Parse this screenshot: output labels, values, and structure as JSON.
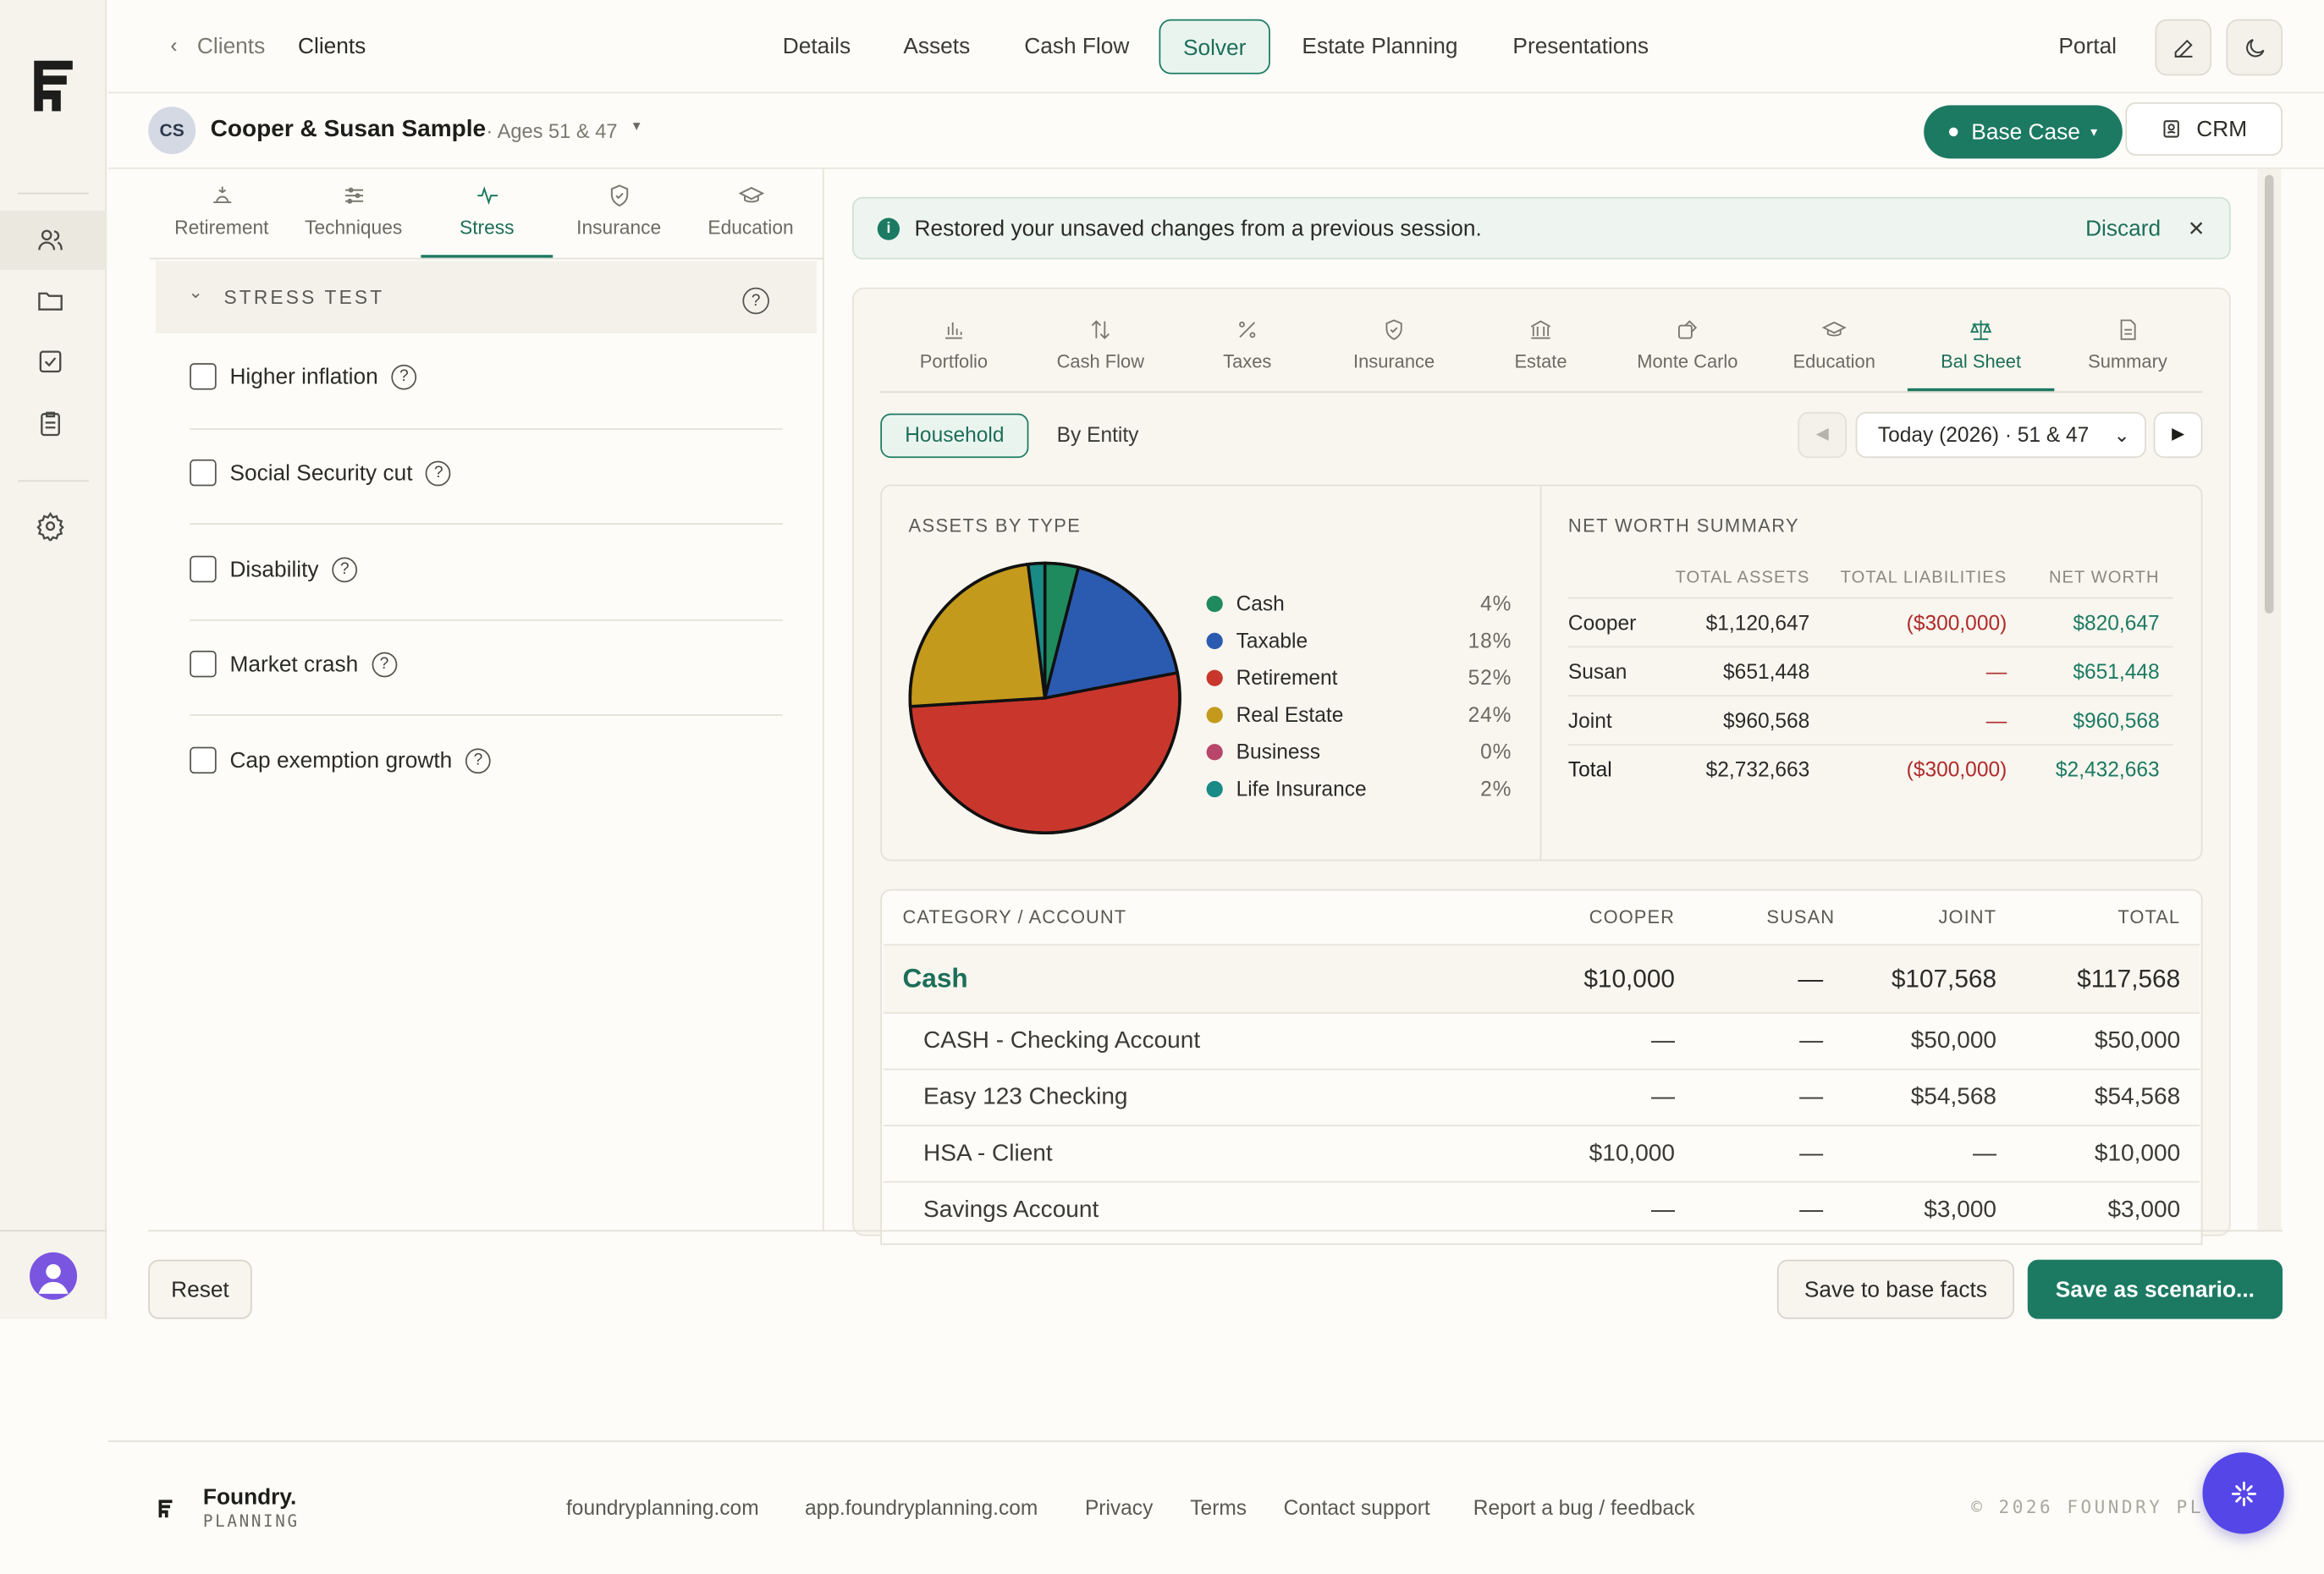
{
  "breadcrumb": {
    "back": "Clients",
    "current": "Clients"
  },
  "nav": {
    "tabs": [
      "Details",
      "Assets",
      "Cash Flow",
      "Solver",
      "Estate Planning",
      "Presentations"
    ],
    "active": "Solver",
    "portal": "Portal"
  },
  "client": {
    "initials": "CS",
    "name": "Cooper & Susan Sample",
    "ages": "· Ages 51 & 47",
    "scenario": "Base Case",
    "crm": "CRM"
  },
  "left_tabs": [
    "Retirement",
    "Techniques",
    "Stress",
    "Insurance",
    "Education"
  ],
  "stress": {
    "header": "STRESS TEST",
    "items": [
      "Higher inflation",
      "Social Security cut",
      "Disability",
      "Market crash",
      "Cap exemption growth"
    ],
    "help": "?"
  },
  "banner": {
    "message": "Restored your unsaved changes from a previous session.",
    "discard": "Discard",
    "close": "✕"
  },
  "right_tabs": [
    "Portfolio",
    "Cash Flow",
    "Taxes",
    "Insurance",
    "Estate",
    "Monte Carlo",
    "Education",
    "Bal Sheet",
    "Summary"
  ],
  "view": {
    "household": "Household",
    "by_entity": "By Entity",
    "date_select": "Today (2026) · 51 & 47"
  },
  "assets_by_type": {
    "title": "ASSETS BY TYPE",
    "chart_data": {
      "type": "pie",
      "categories": [
        "Cash",
        "Taxable",
        "Retirement",
        "Real Estate",
        "Business",
        "Life Insurance"
      ],
      "values": [
        4,
        18,
        52,
        24,
        0,
        2
      ],
      "labels": [
        "4%",
        "18%",
        "52%",
        "24%",
        "0%",
        "2%"
      ],
      "colors": [
        "#1f8a5e",
        "#2b5bb0",
        "#c9372c",
        "#c49a1c",
        "#b8456b",
        "#1a8a86"
      ]
    }
  },
  "net_worth": {
    "title": "NET WORTH SUMMARY",
    "headers": [
      "TOTAL ASSETS",
      "TOTAL LIABILITIES",
      "NET WORTH"
    ],
    "rows": [
      {
        "name": "Cooper",
        "assets": "$1,120,647",
        "liabilities": "($300,000)",
        "net": "$820,647"
      },
      {
        "name": "Susan",
        "assets": "$651,448",
        "liabilities": "—",
        "net": "$651,448"
      },
      {
        "name": "Joint",
        "assets": "$960,568",
        "liabilities": "—",
        "net": "$960,568"
      },
      {
        "name": "Total",
        "assets": "$2,732,663",
        "liabilities": "($300,000)",
        "net": "$2,432,663"
      }
    ]
  },
  "balance_table": {
    "headers": [
      "CATEGORY / ACCOUNT",
      "COOPER",
      "SUSAN",
      "JOINT",
      "TOTAL"
    ],
    "category": {
      "name": "Cash",
      "cooper": "$10,000",
      "susan": "—",
      "joint": "$107,568",
      "total": "$117,568"
    },
    "rows": [
      {
        "name": "CASH - Checking Account",
        "cooper": "—",
        "susan": "—",
        "joint": "$50,000",
        "total": "$50,000"
      },
      {
        "name": "Easy 123 Checking",
        "cooper": "—",
        "susan": "—",
        "joint": "$54,568",
        "total": "$54,568"
      },
      {
        "name": "HSA - Client",
        "cooper": "$10,000",
        "susan": "—",
        "joint": "—",
        "total": "$10,000"
      },
      {
        "name": "Savings Account",
        "cooper": "—",
        "susan": "—",
        "joint": "$3,000",
        "total": "$3,000"
      }
    ]
  },
  "actions": {
    "reset": "Reset",
    "save_base": "Save to base facts",
    "save_scenario": "Save as scenario..."
  },
  "footer": {
    "brand": "Foundry.",
    "brand_sub": "PLANNING",
    "links": [
      "foundryplanning.com",
      "app.foundryplanning.com",
      "Privacy",
      "Terms",
      "Contact support",
      "Report a bug / feedback"
    ],
    "copyright": "© 2026 FOUNDRY PL"
  }
}
